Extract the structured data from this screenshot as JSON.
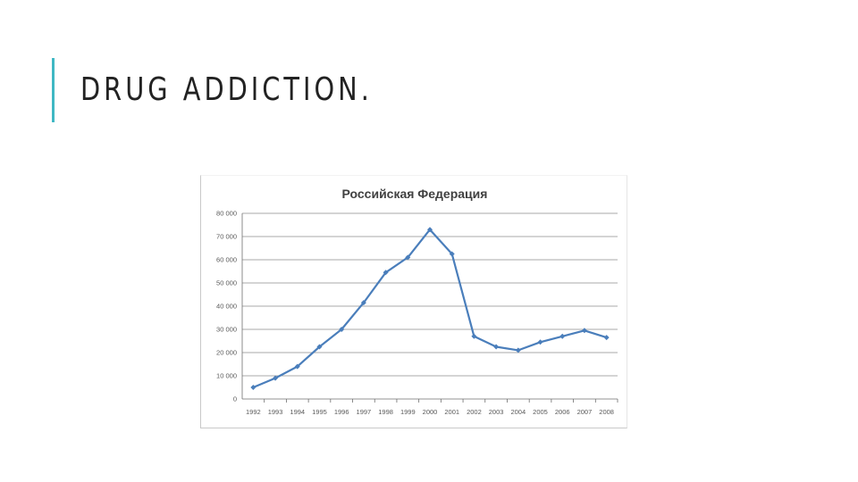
{
  "slide": {
    "title": "DRUG ADDICTION."
  },
  "colors": {
    "accent": "#3fb8c4",
    "series": "#4a7ebb",
    "grid": "#8c8c8c"
  },
  "chart_data": {
    "type": "line",
    "title": "Российская Федерация",
    "xlabel": "",
    "ylabel": "",
    "ylim": [
      0,
      80000
    ],
    "yticks": [
      "0",
      "10 000",
      "20 000",
      "30 000",
      "40 000",
      "50 000",
      "60 000",
      "70 000",
      "80 000"
    ],
    "ytick_values": [
      0,
      10000,
      20000,
      30000,
      40000,
      50000,
      60000,
      70000,
      80000
    ],
    "grid": true,
    "legend": "none",
    "x": [
      "1992",
      "1993",
      "1994",
      "1995",
      "1996",
      "1997",
      "1998",
      "1999",
      "2000",
      "2001",
      "2002",
      "2003",
      "2004",
      "2005",
      "2006",
      "2007",
      "2008"
    ],
    "series": [
      {
        "values": [
          5000,
          9000,
          14000,
          22500,
          30000,
          41500,
          54500,
          61000,
          73000,
          62500,
          27000,
          22500,
          21000,
          24500,
          27000,
          29500,
          26500
        ]
      }
    ]
  }
}
